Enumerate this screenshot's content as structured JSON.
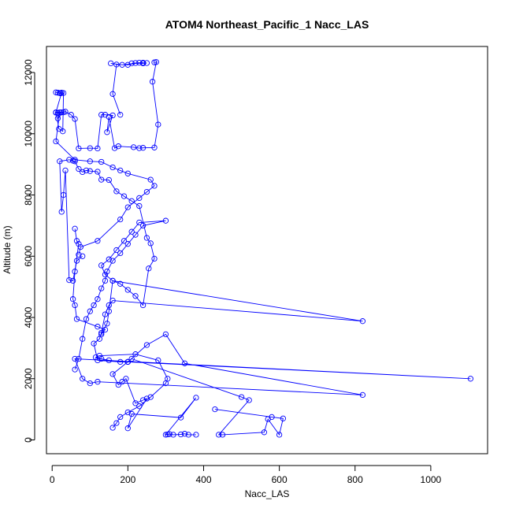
{
  "chart_data": {
    "type": "line",
    "title": "ATOM4 Northeast_Pacific_1 Nacc_LAS",
    "xlabel": "Nacc_LAS",
    "ylabel": "Altitude (m)",
    "xlim": [
      -15,
      1150
    ],
    "ylim": [
      -450,
      12850
    ],
    "xticks": [
      0,
      200,
      400,
      600,
      800,
      1000
    ],
    "yticks": [
      0,
      2000,
      4000,
      6000,
      8000,
      10000,
      12000
    ],
    "xtick_labels": [
      "0",
      "200",
      "400",
      "600",
      "800",
      "1000"
    ],
    "ytick_labels": [
      "0",
      "2000",
      "4000",
      "6000",
      "8000",
      "10000",
      "12000"
    ],
    "grid": false,
    "legend": "none",
    "series_color": "#0000ff",
    "marker": "open-circle",
    "series": [
      {
        "x": [
          270,
          275,
          265,
          280,
          270,
          240,
          230,
          215,
          175,
          165,
          150,
          145,
          160,
          140,
          130,
          120,
          100,
          70,
          60,
          50,
          35,
          25,
          15,
          10,
          18,
          28,
          30,
          22,
          15,
          10,
          20,
          25,
          10,
          30,
          15,
          20,
          10,
          60,
          100,
          130,
          160,
          180,
          200,
          260,
          270,
          250,
          230,
          200,
          180,
          120,
          75,
          70
        ],
        "y": [
          12330,
          12340,
          11700,
          10300,
          9550,
          9540,
          9530,
          9560,
          9590,
          9530,
          10550,
          10050,
          10600,
          10620,
          10620,
          9520,
          9530,
          9520,
          10480,
          10620,
          10720,
          10700,
          10680,
          10690,
          10160,
          10080,
          11330,
          11320,
          11340,
          11350,
          11330,
          11340,
          10700,
          10700,
          10500,
          10700,
          9750,
          9150,
          9100,
          9080,
          8900,
          8800,
          8700,
          8500,
          8300,
          8100,
          7900,
          7600,
          7200,
          6500,
          6300,
          6050
        ]
      },
      {
        "x": [
          155,
          185,
          240,
          220,
          210,
          240,
          250,
          230,
          200,
          170,
          160,
          180
        ],
        "y": [
          12300,
          12250,
          12320,
          12310,
          12300,
          12300,
          12310,
          12320,
          12250,
          12260,
          11300,
          10620
        ]
      },
      {
        "x": [
          80,
          65,
          55,
          45,
          35,
          30,
          25,
          20,
          45,
          55,
          60,
          70,
          80,
          90,
          100,
          120,
          130,
          150,
          170,
          190,
          210,
          230,
          250,
          260,
          270,
          255,
          240,
          220,
          200,
          180,
          160,
          140,
          130,
          150,
          170,
          190,
          210,
          230,
          300,
          240,
          220,
          200,
          180,
          160,
          145,
          140,
          130,
          120,
          110,
          100,
          90,
          80,
          70,
          60
        ],
        "y": [
          6000,
          5850,
          5200,
          5220,
          8800,
          8000,
          7450,
          9100,
          9150,
          9120,
          9100,
          8850,
          8750,
          8800,
          8780,
          8760,
          8500,
          8490,
          8120,
          7960,
          7800,
          7640,
          6600,
          6420,
          5920,
          5600,
          4400,
          4700,
          4900,
          5100,
          5200,
          5400,
          5700,
          5900,
          6200,
          6500,
          6800,
          7100,
          7160,
          7000,
          6700,
          6400,
          6100,
          5850,
          5500,
          5200,
          4950,
          4600,
          4400,
          4200,
          3950,
          3300,
          2650,
          2300
        ]
      },
      {
        "x": [
          60,
          65,
          70,
          60,
          55,
          60,
          65,
          120,
          140,
          130,
          145,
          150,
          160,
          820,
          160,
          150,
          140,
          130,
          125,
          110,
          120,
          180,
          200,
          250,
          300,
          350,
          820,
          120,
          100,
          80,
          60,
          1105,
          200,
          150,
          130,
          115,
          125,
          220,
          280,
          305,
          300,
          260,
          230,
          200,
          180,
          170,
          160
        ],
        "y": [
          6900,
          6500,
          6400,
          5500,
          4600,
          4400,
          3950,
          3700,
          3600,
          3450,
          3800,
          4200,
          5200,
          3880,
          4550,
          4400,
          4100,
          3500,
          3300,
          3150,
          2600,
          2550,
          2550,
          3100,
          3450,
          2500,
          1470,
          1900,
          1850,
          2000,
          2650,
          2000,
          2550,
          2600,
          2650,
          2700,
          2750,
          2800,
          2600,
          2000,
          1850,
          1400,
          1100,
          900,
          750,
          550,
          400
        ]
      },
      {
        "x": [
          380,
          360,
          350,
          340,
          320,
          310,
          305,
          300,
          380,
          340,
          210,
          200,
          250,
          240,
          220,
          195,
          185,
          175,
          160,
          200,
          210,
          500,
          520,
          440,
          450,
          560,
          570,
          600,
          610,
          580,
          430
        ],
        "y": [
          170,
          170,
          200,
          180,
          170,
          190,
          180,
          170,
          1380,
          730,
          850,
          380,
          1350,
          1300,
          1200,
          2000,
          1900,
          1800,
          2150,
          2550,
          2650,
          1400,
          1300,
          170,
          170,
          250,
          680,
          170,
          700,
          750,
          1000
        ]
      }
    ]
  }
}
